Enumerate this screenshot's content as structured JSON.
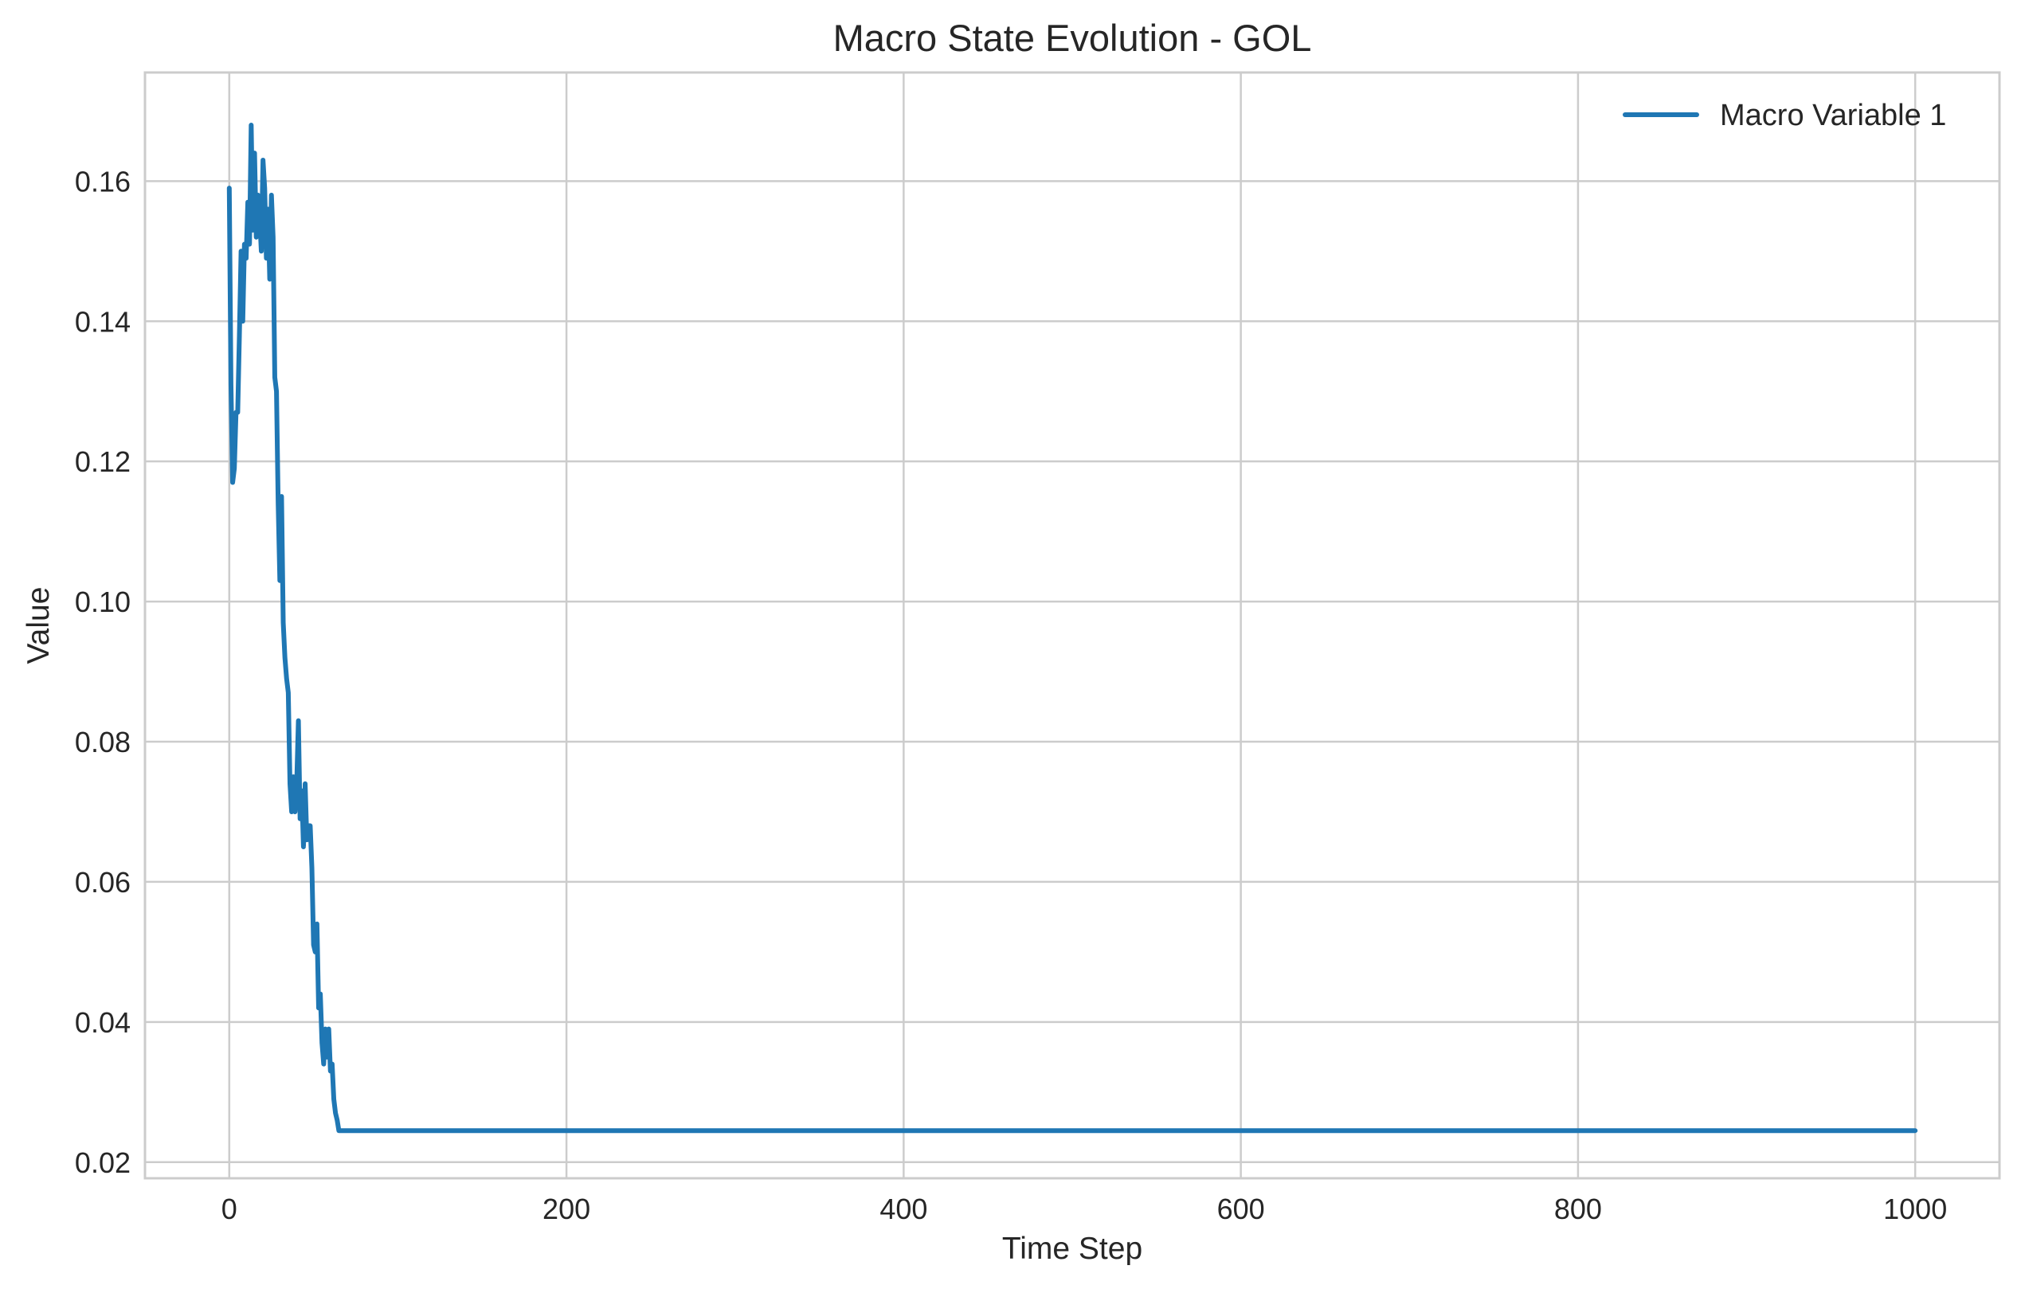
{
  "chart_data": {
    "type": "line",
    "title": "Macro State Evolution - GOL",
    "xlabel": "Time Step",
    "ylabel": "Value",
    "xlim": [
      -50,
      1050
    ],
    "ylim": [
      0.0177,
      0.1755
    ],
    "xticks": [
      0,
      200,
      400,
      600,
      800,
      1000
    ],
    "yticks": [
      0.02,
      0.04,
      0.06,
      0.08,
      0.1,
      0.12,
      0.14,
      0.16
    ],
    "xtick_labels": [
      "0",
      "200",
      "400",
      "600",
      "800",
      "1000"
    ],
    "ytick_labels": [
      "0.02",
      "0.04",
      "0.06",
      "0.08",
      "0.10",
      "0.12",
      "0.14",
      "0.16"
    ],
    "grid": true,
    "legend_position": "top-right",
    "series": [
      {
        "name": "Macro Variable 1",
        "color": "#1f77b4",
        "x": [
          0,
          1,
          2,
          3,
          4,
          5,
          6,
          7,
          8,
          9,
          10,
          11,
          12,
          13,
          14,
          15,
          16,
          17,
          18,
          19,
          20,
          21,
          22,
          23,
          24,
          25,
          26,
          27,
          28,
          29,
          30,
          31,
          32,
          33,
          34,
          35,
          36,
          37,
          38,
          39,
          40,
          41,
          42,
          43,
          44,
          45,
          46,
          47,
          48,
          49,
          50,
          51,
          52,
          53,
          54,
          55,
          56,
          57,
          58,
          59,
          60,
          61,
          62,
          63,
          64,
          65,
          66,
          67,
          68,
          70,
          100,
          200,
          300,
          400,
          500,
          600,
          700,
          800,
          900,
          1000
        ],
        "y": [
          0.159,
          0.131,
          0.117,
          0.119,
          0.127,
          0.127,
          0.138,
          0.15,
          0.14,
          0.151,
          0.149,
          0.157,
          0.151,
          0.168,
          0.153,
          0.164,
          0.152,
          0.158,
          0.155,
          0.15,
          0.163,
          0.159,
          0.149,
          0.156,
          0.146,
          0.158,
          0.152,
          0.132,
          0.13,
          0.114,
          0.103,
          0.115,
          0.097,
          0.092,
          0.089,
          0.087,
          0.074,
          0.07,
          0.075,
          0.07,
          0.074,
          0.083,
          0.069,
          0.073,
          0.065,
          0.074,
          0.066,
          0.068,
          0.068,
          0.062,
          0.051,
          0.05,
          0.054,
          0.042,
          0.044,
          0.037,
          0.034,
          0.039,
          0.035,
          0.039,
          0.033,
          0.034,
          0.029,
          0.027,
          0.026,
          0.0245,
          0.0245,
          0.0245,
          0.0245,
          0.0245,
          0.0245,
          0.0245,
          0.0245,
          0.0245,
          0.0245,
          0.0245,
          0.0245,
          0.0245,
          0.0245,
          0.0245
        ]
      }
    ]
  }
}
